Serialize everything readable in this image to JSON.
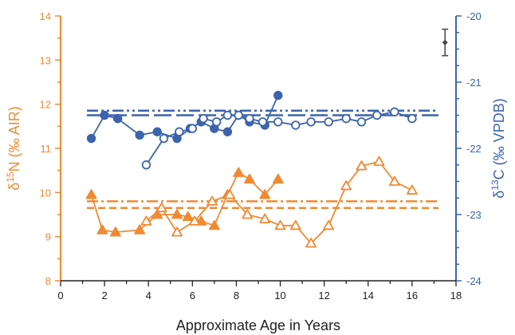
{
  "chart_data": {
    "type": "scatter",
    "xlabel": "Approximate Age in Years",
    "ylabel_left": {
      "prefix": "δ",
      "sup": "15",
      "rest": "N (‰ AIR)"
    },
    "ylabel_right": {
      "prefix": "δ",
      "sup": "13",
      "rest": "C (‰ VPDB)"
    },
    "xlim": [
      0,
      18
    ],
    "ylim_left": [
      8,
      14
    ],
    "ylim_right": [
      -24,
      -20
    ],
    "x_ticks": [
      "0",
      "2",
      "4",
      "6",
      "8",
      "10",
      "12",
      "14",
      "16",
      "18"
    ],
    "y_left_ticks": [
      "8",
      "9",
      "10",
      "11",
      "12",
      "13",
      "14"
    ],
    "y_right_ticks": [
      "-24",
      "-23",
      "-22",
      "-21",
      "-20"
    ],
    "colors": {
      "nitrogen": "#f08a32",
      "carbon": "#3c63ad",
      "axis": "#222222",
      "error_bar": "#444444"
    },
    "series": [
      {
        "axis": "left",
        "marker": "triangle",
        "fill": "filled",
        "x": [
          1.4,
          1.9,
          2.5,
          3.6,
          4.4,
          5.3,
          5.8,
          6.4,
          7.0,
          7.6,
          8.1,
          8.6,
          9.3,
          9.9
        ],
        "y": [
          9.95,
          9.15,
          9.1,
          9.15,
          9.5,
          9.5,
          9.45,
          9.35,
          9.25,
          9.95,
          10.45,
          10.3,
          9.95,
          10.3
        ]
      },
      {
        "axis": "left",
        "marker": "triangle",
        "fill": "open",
        "x": [
          3.9,
          4.6,
          5.3,
          6.1,
          6.9,
          7.7,
          8.5,
          9.3,
          10.0,
          10.7,
          11.4,
          12.2,
          13.0,
          13.7,
          14.5,
          15.2,
          16.0
        ],
        "y": [
          9.35,
          9.65,
          9.1,
          9.35,
          9.8,
          9.95,
          9.5,
          9.4,
          9.25,
          9.25,
          8.85,
          9.25,
          10.15,
          10.6,
          10.7,
          10.25,
          10.05
        ]
      },
      {
        "axis": "right",
        "marker": "circle",
        "fill": "filled",
        "x": [
          1.4,
          2.0,
          2.6,
          3.6,
          4.4,
          5.3,
          5.9,
          6.4,
          7.0,
          7.6,
          8.1,
          8.6,
          9.3,
          9.9
        ],
        "y": [
          -21.85,
          -21.5,
          -21.55,
          -21.8,
          -21.75,
          -21.85,
          -21.7,
          -21.6,
          -21.7,
          -21.75,
          -21.5,
          -21.6,
          -21.65,
          -21.2
        ]
      },
      {
        "axis": "right",
        "marker": "circle",
        "fill": "open",
        "x": [
          3.9,
          4.7,
          5.4,
          6.0,
          6.5,
          7.1,
          7.6,
          8.1,
          8.6,
          9.2,
          9.9,
          10.7,
          11.4,
          12.2,
          13.0,
          13.7,
          14.4,
          15.2,
          16.0
        ],
        "y": [
          -22.25,
          -21.85,
          -21.75,
          -21.7,
          -21.55,
          -21.6,
          -21.5,
          -21.5,
          -21.55,
          -21.6,
          -21.6,
          -21.65,
          -21.6,
          -21.6,
          -21.55,
          -21.6,
          -21.5,
          -21.45,
          -21.55
        ]
      }
    ],
    "reference_lines": [
      {
        "axis": "left",
        "value": 9.8,
        "style": "dashdot",
        "color": "nitrogen"
      },
      {
        "axis": "left",
        "value": 9.65,
        "style": "dashed",
        "color": "nitrogen"
      },
      {
        "axis": "right",
        "value": -21.43,
        "style": "dashdotdot",
        "color": "carbon"
      },
      {
        "axis": "right",
        "value": -21.5,
        "style": "longdash",
        "color": "carbon"
      }
    ],
    "error_bar": {
      "axis": "left",
      "x": 17.5,
      "y": 13.4,
      "err": 0.3
    },
    "grid": false,
    "legend": "none"
  }
}
